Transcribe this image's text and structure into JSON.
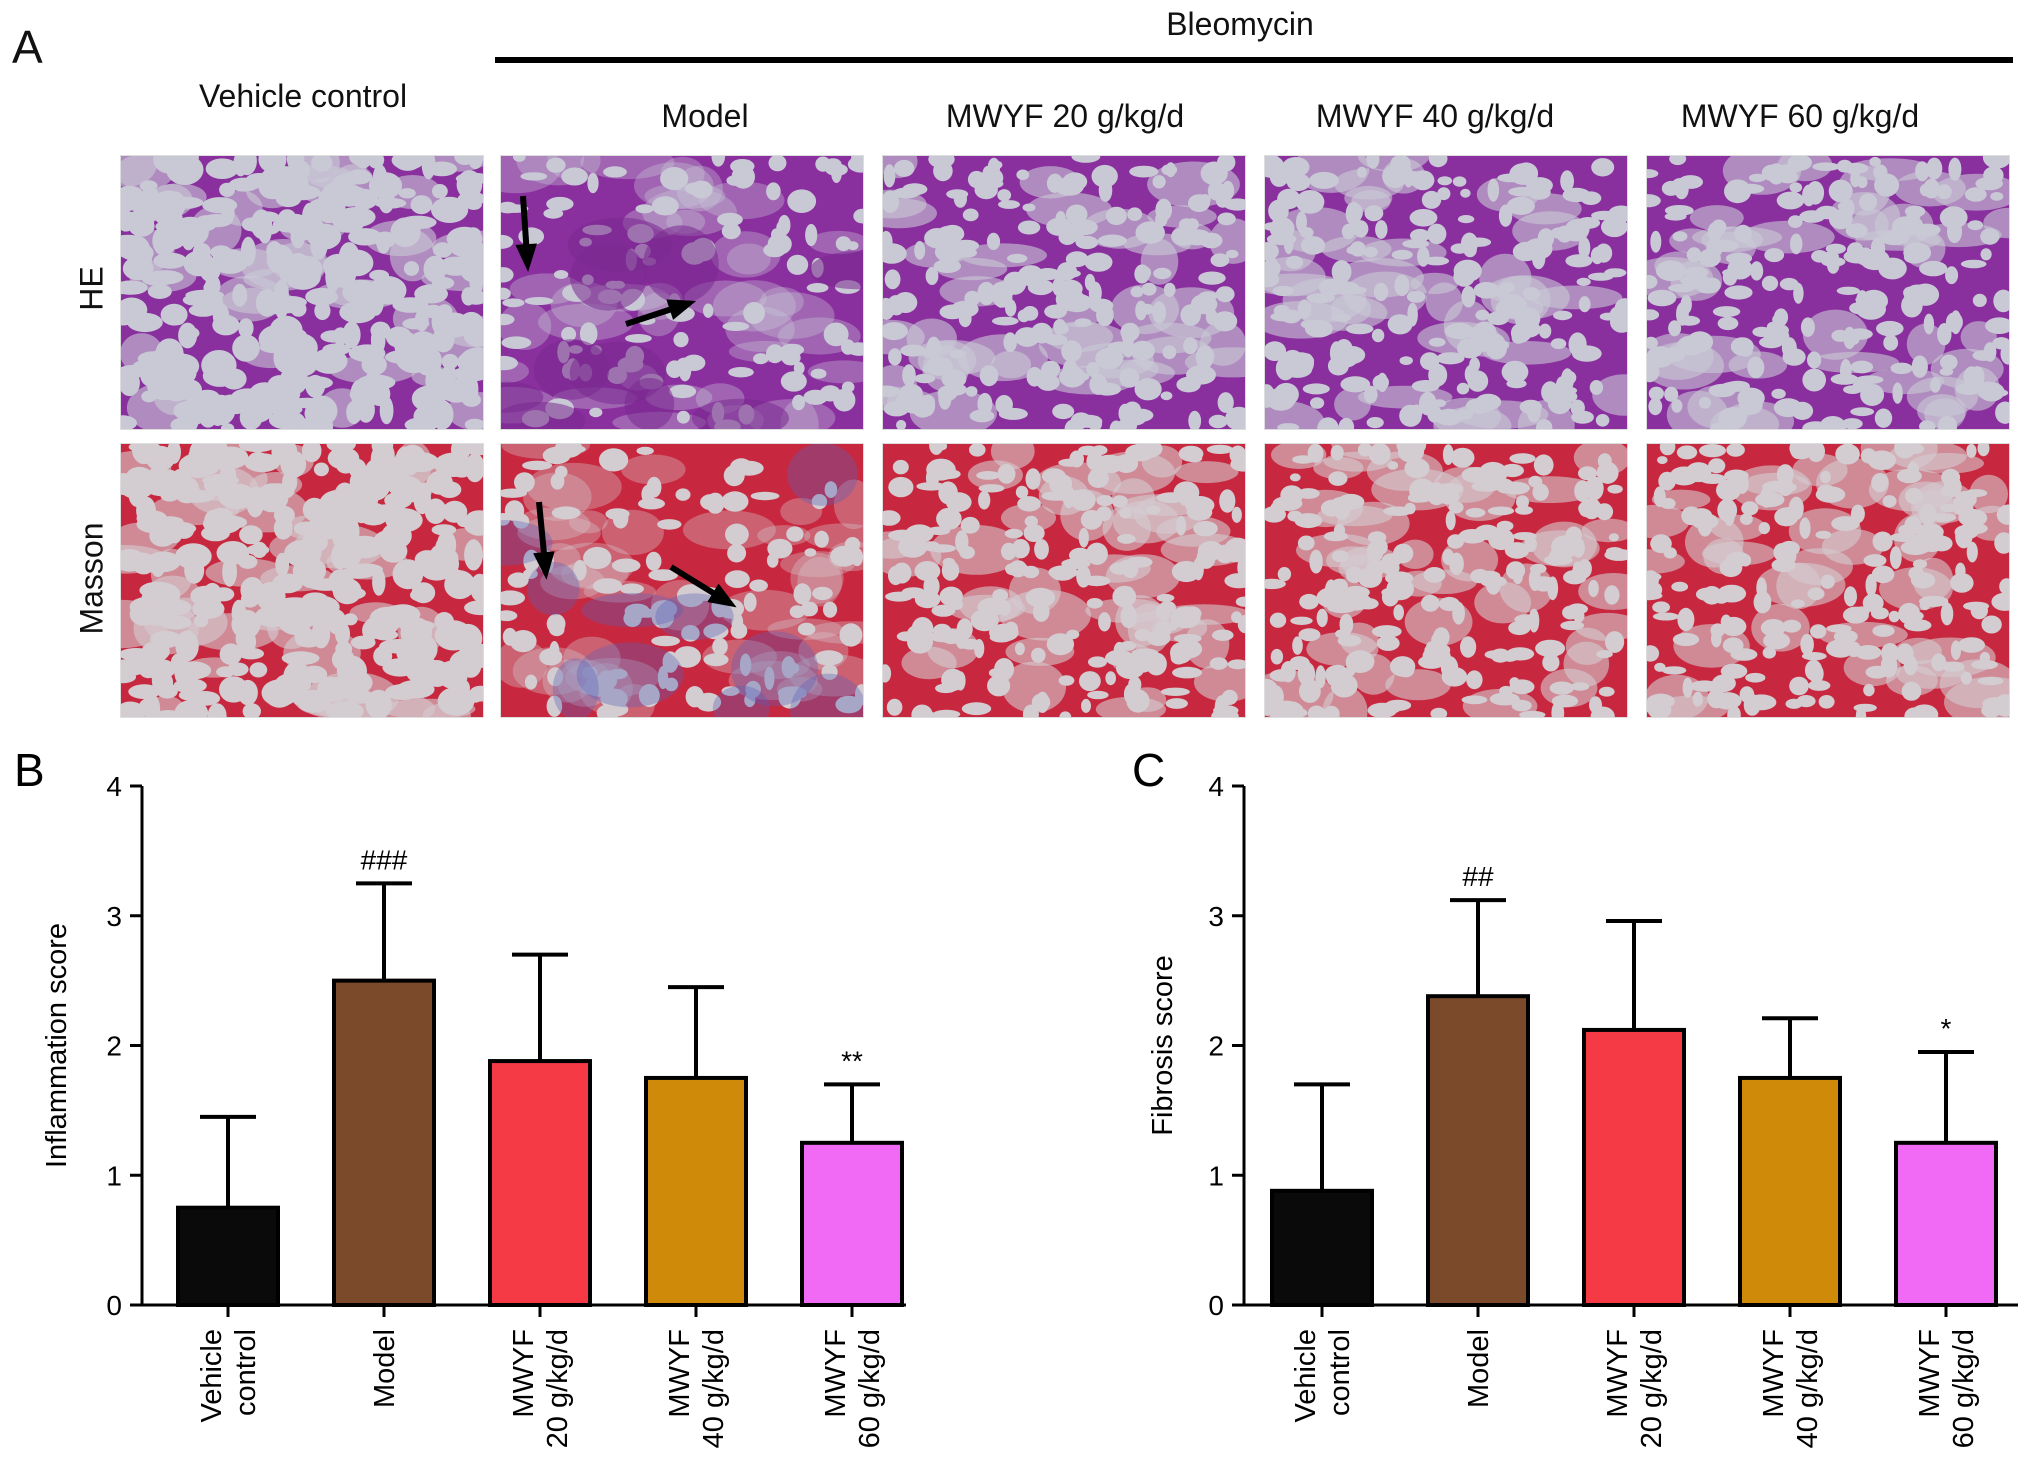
{
  "figure_a": {
    "panel_label": "A",
    "bleomycin_label": "Bleomycin",
    "column_headers": [
      "Vehicle control",
      "Model",
      "MWYF 20 g/kg/d",
      "MWYF 40 g/kg/d",
      "MWYF 60 g/kg/d"
    ],
    "row_labels": [
      "HE",
      "Masson"
    ],
    "colors": {
      "he_bg": "#c9c9d6",
      "he_tissue": "#8a2f9e",
      "he_dense": "#7a2a8f",
      "masson_bg": "#d3ccd0",
      "masson_tissue": "#c8283f",
      "masson_blue": "#5a5fb8"
    }
  },
  "chart_data": [
    {
      "panel_label": "B",
      "type": "bar",
      "ylabel": "Inflammation score",
      "ylim": [
        0,
        4
      ],
      "yticks": [
        0,
        1,
        2,
        3,
        4
      ],
      "categories": [
        "Vehicle control",
        "Model",
        "MWYF 20 g/kg/d",
        "MWYF 40 g/kg/d",
        "MWYF 60 g/kg/d"
      ],
      "tick_labels": [
        [
          "Vehicle",
          "control"
        ],
        [
          "Model"
        ],
        [
          "MWYF",
          "20 g/kg/d"
        ],
        [
          "MWYF",
          "40 g/kg/d"
        ],
        [
          "MWYF",
          "60 g/kg/d"
        ]
      ],
      "values": [
        0.75,
        2.5,
        1.88,
        1.75,
        1.25
      ],
      "errors": [
        0.7,
        0.75,
        0.82,
        0.7,
        0.45
      ],
      "annotations": [
        "",
        "###",
        "",
        "",
        "**"
      ],
      "colors": [
        "#0a0a0a",
        "#7a4a2a",
        "#f53a45",
        "#d08a0a",
        "#f06af5"
      ]
    },
    {
      "panel_label": "C",
      "type": "bar",
      "ylabel": "Fibrosis score",
      "ylim": [
        0,
        4
      ],
      "yticks": [
        0,
        1,
        2,
        3,
        4
      ],
      "categories": [
        "Vehicle control",
        "Model",
        "MWYF 20 g/kg/d",
        "MWYF 40 g/kg/d",
        "MWYF 60 g/kg/d"
      ],
      "tick_labels": [
        [
          "Vehicle",
          "control"
        ],
        [
          "Model"
        ],
        [
          "MWYF",
          "20 g/kg/d"
        ],
        [
          "MWYF",
          "40 g/kg/d"
        ],
        [
          "MWYF",
          "60 g/kg/d"
        ]
      ],
      "values": [
        0.88,
        2.38,
        2.12,
        1.75,
        1.25
      ],
      "errors": [
        0.82,
        0.74,
        0.84,
        0.46,
        0.7
      ],
      "annotations": [
        "",
        "##",
        "",
        "",
        "*"
      ],
      "colors": [
        "#0a0a0a",
        "#7a4a2a",
        "#f53a45",
        "#d08a0a",
        "#f06af5"
      ]
    }
  ]
}
